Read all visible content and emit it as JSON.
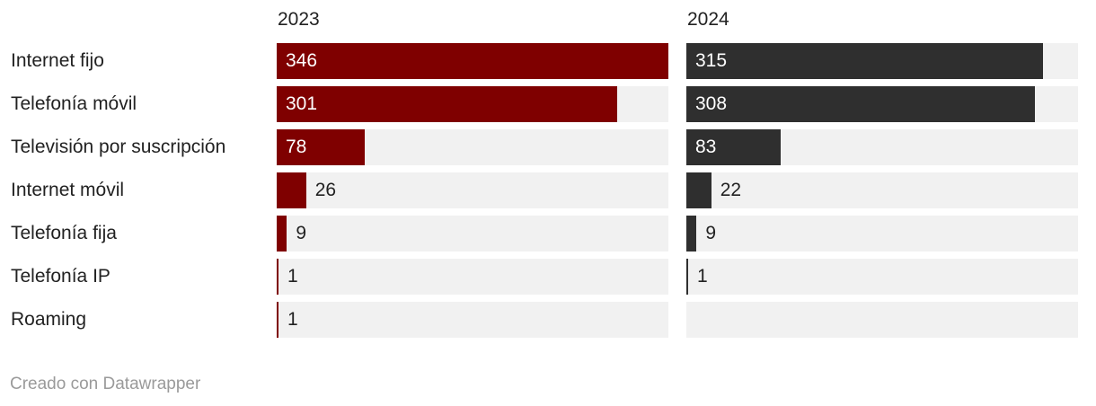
{
  "chart_data": {
    "type": "bar",
    "categories": [
      "Internet fijo",
      "Telefonía móvil",
      "Televisión por suscripción",
      "Internet móvil",
      "Telefonía fija",
      "Telefonía IP",
      "Roaming"
    ],
    "series": [
      {
        "name": "2023",
        "values": [
          346,
          301,
          78,
          26,
          9,
          1,
          1
        ],
        "color": "#7f0000"
      },
      {
        "name": "2024",
        "values": [
          315,
          308,
          83,
          22,
          9,
          1,
          null
        ],
        "color": "#2f2f2f"
      }
    ],
    "xlim": [
      0,
      346
    ],
    "track_color": "#f1f1f1"
  },
  "footer": {
    "credit": "Creado con Datawrapper"
  }
}
